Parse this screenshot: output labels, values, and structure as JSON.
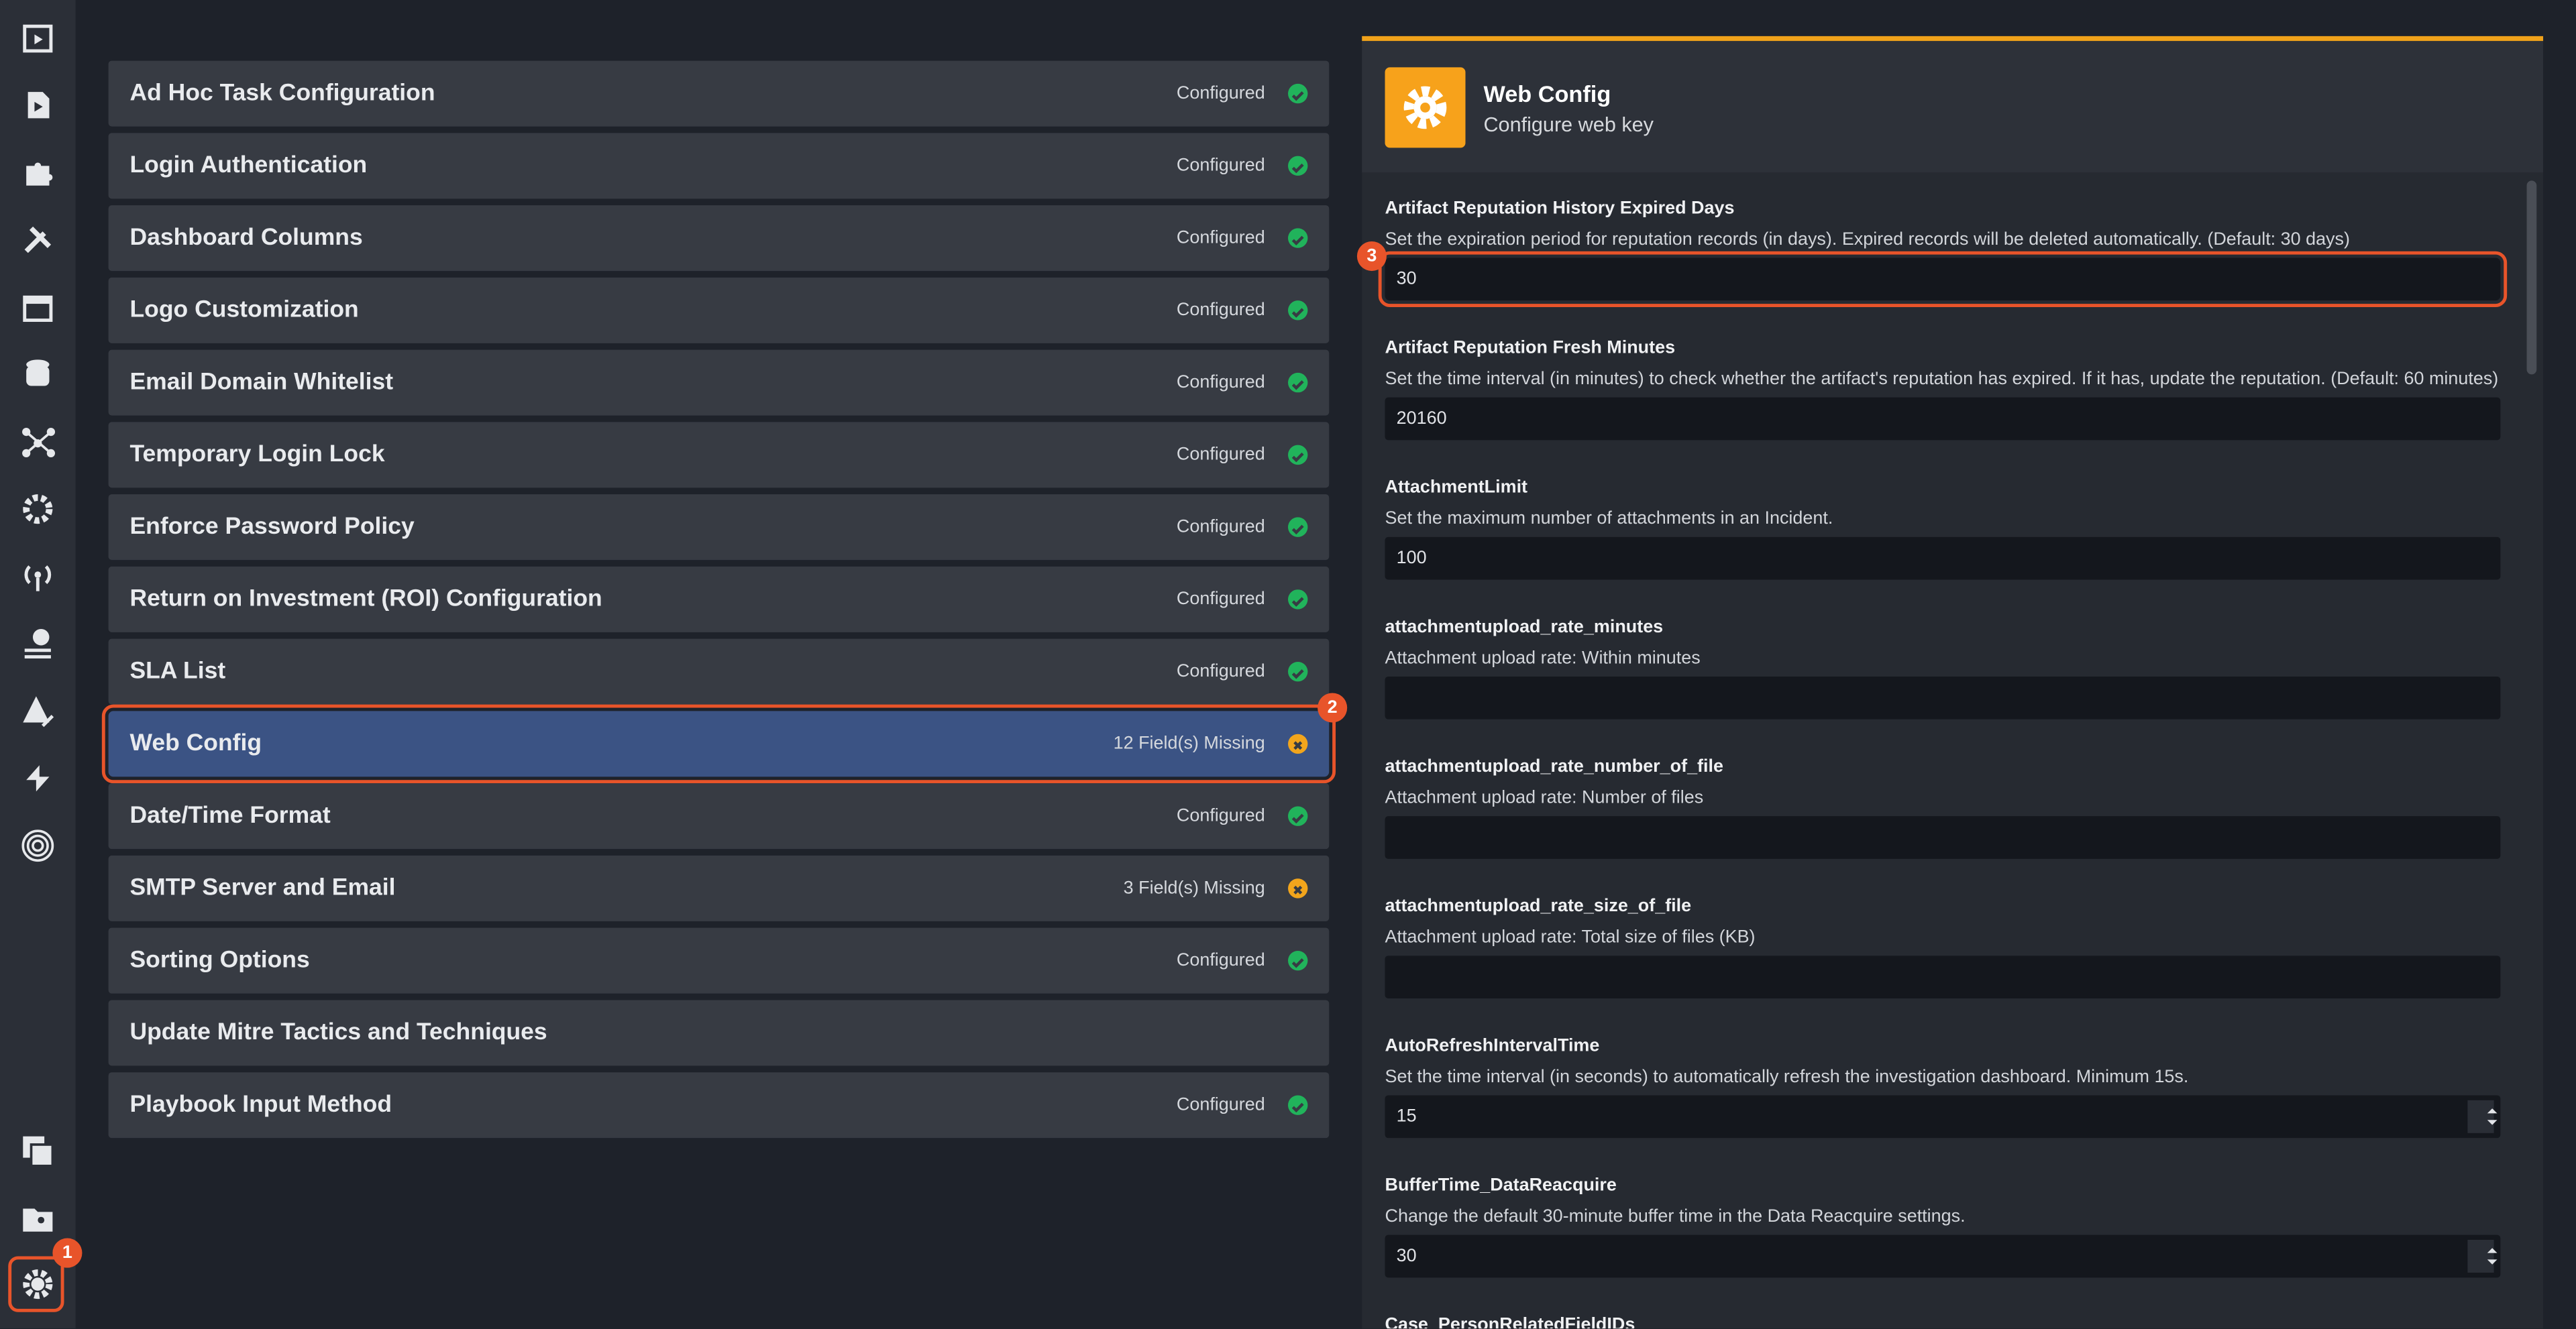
{
  "sidebar": {
    "badge": "1"
  },
  "config_list": {
    "badge": "2",
    "items": [
      {
        "name": "Ad Hoc Task Configuration",
        "status": "Configured",
        "state": "ok"
      },
      {
        "name": "Login Authentication",
        "status": "Configured",
        "state": "ok"
      },
      {
        "name": "Dashboard Columns",
        "status": "Configured",
        "state": "ok"
      },
      {
        "name": "Logo Customization",
        "status": "Configured",
        "state": "ok"
      },
      {
        "name": "Email Domain Whitelist",
        "status": "Configured",
        "state": "ok"
      },
      {
        "name": "Temporary Login Lock",
        "status": "Configured",
        "state": "ok"
      },
      {
        "name": "Enforce Password Policy",
        "status": "Configured",
        "state": "ok"
      },
      {
        "name": "Return on Investment (ROI) Configuration",
        "status": "Configured",
        "state": "ok"
      },
      {
        "name": "SLA List",
        "status": "Configured",
        "state": "ok"
      },
      {
        "name": "Web Config",
        "status": "12 Field(s) Missing",
        "state": "missing",
        "selected": true
      },
      {
        "name": "Date/Time Format",
        "status": "Configured",
        "state": "ok"
      },
      {
        "name": "SMTP Server and Email",
        "status": "3 Field(s) Missing",
        "state": "missing"
      },
      {
        "name": "Sorting Options",
        "status": "Configured",
        "state": "ok"
      },
      {
        "name": "Update Mitre Tactics and Techniques"
      },
      {
        "name": "Playbook Input Method",
        "status": "Configured",
        "state": "ok"
      }
    ]
  },
  "panel": {
    "title": "Web Config",
    "subtitle": "Configure web key",
    "badge": "3",
    "fields": [
      {
        "label": "Artifact Reputation History Expired Days",
        "description": "Set the expiration period for reputation records (in days). Expired records will be deleted automatically. (Default: 30 days)",
        "value": "30",
        "highlight": true
      },
      {
        "label": "Artifact Reputation Fresh Minutes",
        "description": "Set the time interval (in minutes) to check whether the artifact's reputation has expired. If it has, update the reputation. (Default: 60 minutes)",
        "value": "20160"
      },
      {
        "label": "AttachmentLimit",
        "description": "Set the maximum number of attachments in an Incident.",
        "value": "100"
      },
      {
        "label": "attachmentupload_rate_minutes",
        "description": "Attachment upload rate: Within minutes"
      },
      {
        "label": "attachmentupload_rate_number_of_file",
        "description": "Attachment upload rate: Number of files"
      },
      {
        "label": "attachmentupload_rate_size_of_file",
        "description": "Attachment upload rate: Total size of files (KB)"
      },
      {
        "label": "AutoRefreshIntervalTime",
        "description": "Set the time interval (in seconds) to automatically refresh the investigation dashboard. Minimum 15s.",
        "value": "15",
        "spinner": true
      },
      {
        "label": "BufferTime_DataReacquire",
        "description": "Change the default 30-minute buffer time in the Data Reacquire settings.",
        "value": "30",
        "spinner": true
      },
      {
        "label": "Case_PersonRelatedFieldIDs"
      }
    ]
  }
}
